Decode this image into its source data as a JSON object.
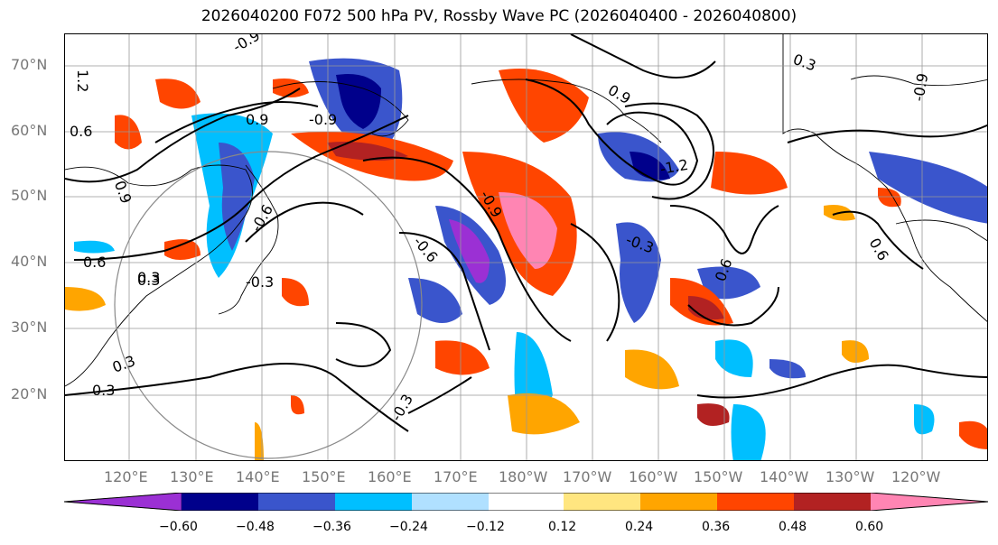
{
  "title": "2026040200 F072 500 hPa PV, Rossby Wave PC (2026040400 - 2026040800)",
  "lat_labels": [
    "70°N",
    "60°N",
    "50°N",
    "40°N",
    "30°N",
    "20°N"
  ],
  "lon_labels": [
    "120°E",
    "130°E",
    "140°E",
    "150°E",
    "160°E",
    "170°E",
    "180°W",
    "170°W",
    "160°W",
    "150°W",
    "140°W",
    "130°W",
    "120°W"
  ],
  "contour_labels": [
    "1.2",
    "-0.9",
    "0.6",
    "-0.9",
    "0.9",
    "0.3",
    "-0.9",
    "0.9",
    "-0.3",
    "-0.6",
    "0.6",
    "0.3",
    "-0.6",
    "0.6",
    "-0.3",
    "0.3",
    "0.3",
    "-0.3",
    "0.9",
    "-1.2",
    "0.6",
    "0.3",
    "-0.9"
  ],
  "colorbar": {
    "ticks": [
      "−0.60",
      "−0.48",
      "−0.36",
      "−0.24",
      "−0.12",
      "0.12",
      "0.24",
      "0.36",
      "0.48",
      "0.60"
    ],
    "colors": [
      "#9b30d4",
      "#00008b",
      "#3a55cc",
      "#00bfff",
      "#b0e0ff",
      "#ffffff",
      "#ffe680",
      "#ffa500",
      "#ff4500",
      "#b22222",
      "#ff85b3"
    ]
  }
}
